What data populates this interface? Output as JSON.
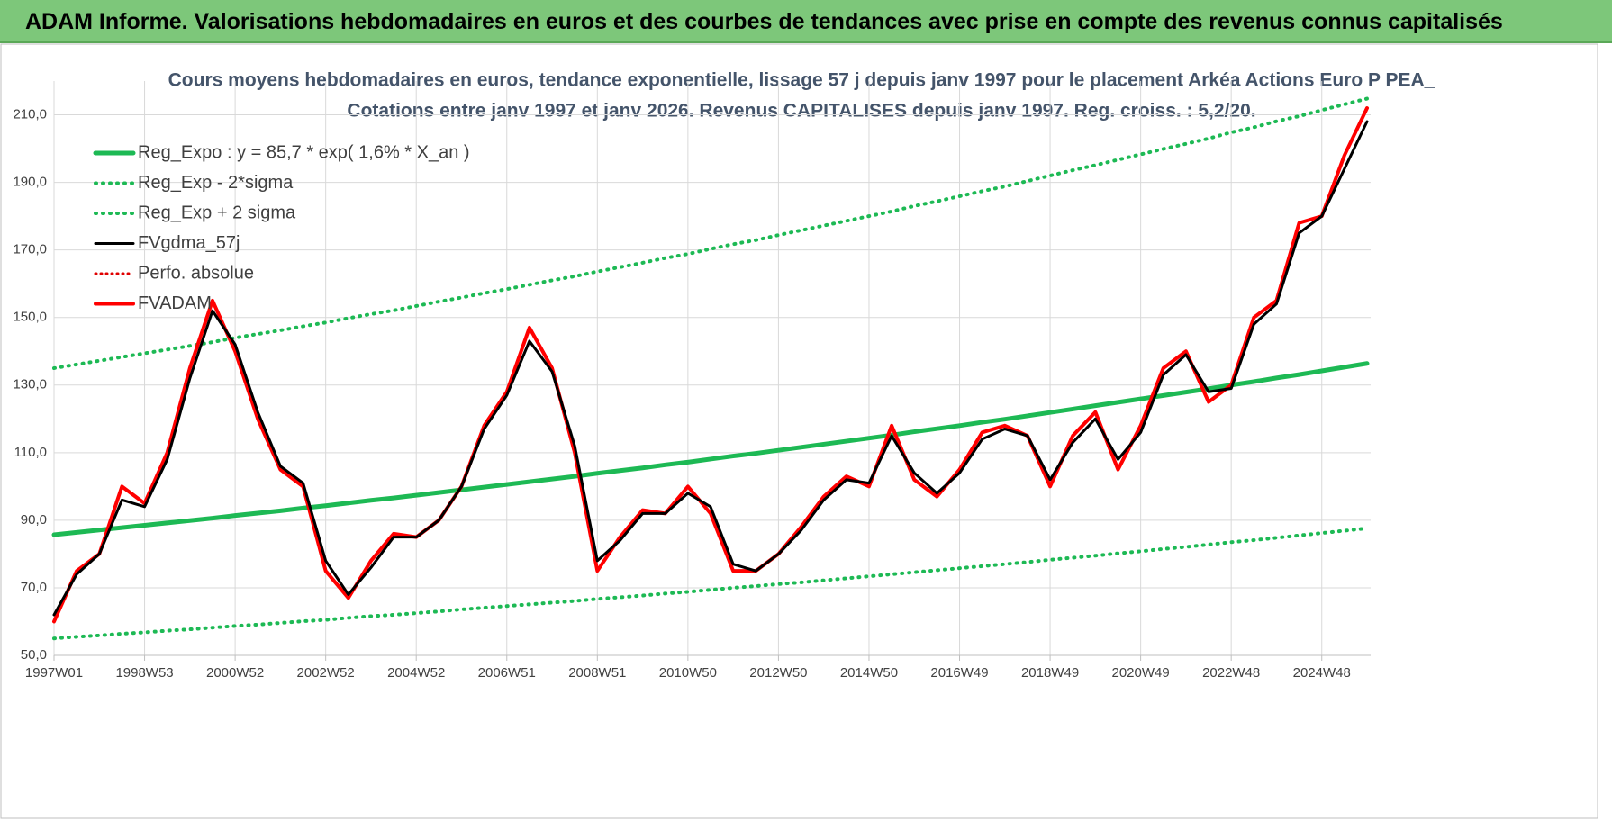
{
  "header": {
    "title": "ADAM Informe. Valorisations hebdomadaires en euros et des courbes de tendances avec prise en compte des revenus connus capitalisés"
  },
  "chart_data": {
    "type": "line",
    "title": "Cours moyens hebdomadaires en euros, tendance exponentielle, lissage 57 j depuis janv 1997  pour le placement Arkéa Actions Euro P PEA_",
    "subtitle": "Cotations entre janv 1997 et janv 2026. Revenus CAPITALISES depuis janv 1997. Reg. croiss. : 5,2/20.",
    "categories": [
      "1997W01",
      null,
      null,
      null,
      "1998W53",
      null,
      null,
      null,
      "2000W52",
      null,
      null,
      null,
      "2002W52",
      null,
      null,
      null,
      "2004W52",
      null,
      null,
      null,
      "2006W51",
      null,
      null,
      null,
      "2008W51",
      null,
      null,
      null,
      "2010W50",
      null,
      null,
      null,
      "2012W50",
      null,
      null,
      null,
      "2014W50",
      null,
      null,
      null,
      "2016W49",
      null,
      null,
      null,
      "2018W49",
      null,
      null,
      null,
      "2020W49",
      null,
      null,
      null,
      "2022W48",
      null,
      null,
      null,
      "2024W48",
      null,
      null
    ],
    "ylim": [
      50,
      220
    ],
    "yticks": [
      {
        "value": 50,
        "label": "50,0"
      },
      {
        "value": 70,
        "label": "70,0"
      },
      {
        "value": 90,
        "label": "90,0"
      },
      {
        "value": 110,
        "label": "110,0"
      },
      {
        "value": 130,
        "label": "130,0"
      },
      {
        "value": 150,
        "label": "150,0"
      },
      {
        "value": 170,
        "label": "170,0"
      },
      {
        "value": 190,
        "label": "190,0"
      },
      {
        "value": 210,
        "label": "210,0"
      }
    ],
    "grid": true,
    "legend": "top-left",
    "series": [
      {
        "name": "Reg_Expo : y = 85,7 * exp( 1,6% *  X_an )",
        "color": "#1db954",
        "style": "solid",
        "width": 5,
        "values": [
          85.7,
          86.4,
          87.1,
          87.8,
          88.5,
          89.2,
          89.9,
          90.6,
          91.4,
          92.1,
          92.8,
          93.6,
          94.3,
          95.1,
          95.9,
          96.6,
          97.4,
          98.2,
          99.0,
          99.8,
          100.6,
          101.4,
          102.2,
          103.0,
          103.9,
          104.7,
          105.5,
          106.4,
          107.2,
          108.1,
          109.0,
          109.8,
          110.7,
          111.6,
          112.5,
          113.4,
          114.3,
          115.2,
          116.2,
          117.1,
          118.0,
          119.0,
          119.9,
          120.9,
          121.9,
          122.9,
          123.9,
          124.9,
          125.9,
          126.9,
          127.9,
          128.9,
          130.0,
          131.0,
          132.1,
          133.1,
          134.2,
          135.3,
          136.4
        ]
      },
      {
        "name": "Reg_Exp - 2*sigma",
        "color": "#1db954",
        "style": "dotted",
        "width": 4,
        "values": [
          55.0,
          55.5,
          55.9,
          56.4,
          56.8,
          57.3,
          57.7,
          58.2,
          58.7,
          59.1,
          59.6,
          60.1,
          60.5,
          61.1,
          61.6,
          62.0,
          62.5,
          63.0,
          63.6,
          64.1,
          64.6,
          65.1,
          65.6,
          66.1,
          66.7,
          67.2,
          67.7,
          68.3,
          68.8,
          69.4,
          70.0,
          70.5,
          71.1,
          71.6,
          72.2,
          72.8,
          73.4,
          74.0,
          74.6,
          75.2,
          75.8,
          76.4,
          77.0,
          77.6,
          78.3,
          78.9,
          79.5,
          80.2,
          80.8,
          81.5,
          82.1,
          82.8,
          83.5,
          84.1,
          84.8,
          85.5,
          86.2,
          86.9,
          87.6
        ]
      },
      {
        "name": "Reg_Exp + 2 sigma",
        "color": "#1db954",
        "style": "dotted",
        "width": 4,
        "values": [
          135.0,
          136.1,
          137.2,
          138.3,
          139.4,
          140.5,
          141.6,
          142.7,
          144.0,
          145.1,
          146.2,
          147.4,
          148.5,
          149.8,
          151.0,
          152.1,
          153.4,
          154.7,
          155.9,
          157.2,
          158.4,
          159.7,
          161.0,
          162.2,
          163.6,
          164.9,
          166.2,
          167.6,
          168.8,
          170.3,
          171.7,
          172.9,
          174.4,
          175.8,
          177.2,
          178.6,
          180.0,
          181.4,
          183.0,
          184.4,
          185.9,
          187.4,
          188.8,
          190.4,
          192.0,
          193.6,
          195.1,
          196.7,
          198.3,
          199.9,
          201.4,
          203.0,
          204.8,
          206.3,
          208.1,
          209.6,
          211.4,
          213.1,
          214.8
        ]
      },
      {
        "name": "FVgdma_57j",
        "color": "#000000",
        "style": "solid",
        "width": 3,
        "values": [
          62,
          74,
          80,
          96,
          94,
          108,
          132,
          152,
          142,
          122,
          106,
          101,
          78,
          68,
          76,
          85,
          85,
          90,
          100,
          117,
          127,
          143,
          134,
          112,
          78,
          84,
          92,
          92,
          98,
          94,
          77,
          75,
          80,
          87,
          96,
          102,
          101,
          115,
          104,
          98,
          104,
          114,
          117,
          115,
          102,
          113,
          120,
          108,
          116,
          133,
          139,
          128,
          129,
          148,
          154,
          175,
          180,
          194,
          208
        ]
      },
      {
        "name": "Perfo. absolue",
        "color": "#e00000",
        "style": "dotted",
        "width": 3
      },
      {
        "name": "FVADAM",
        "color": "#ff0000",
        "style": "solid",
        "width": 4,
        "values": [
          60,
          75,
          80,
          100,
          95,
          110,
          135,
          155,
          140,
          120,
          105,
          100,
          75,
          67,
          78,
          86,
          85,
          90,
          100,
          118,
          128,
          147,
          135,
          110,
          75,
          85,
          93,
          92,
          100,
          92,
          75,
          75,
          80,
          88,
          97,
          103,
          100,
          118,
          102,
          97,
          105,
          116,
          118,
          115,
          100,
          115,
          122,
          105,
          118,
          135,
          140,
          125,
          130,
          150,
          155,
          178,
          180,
          198,
          212
        ]
      }
    ]
  }
}
